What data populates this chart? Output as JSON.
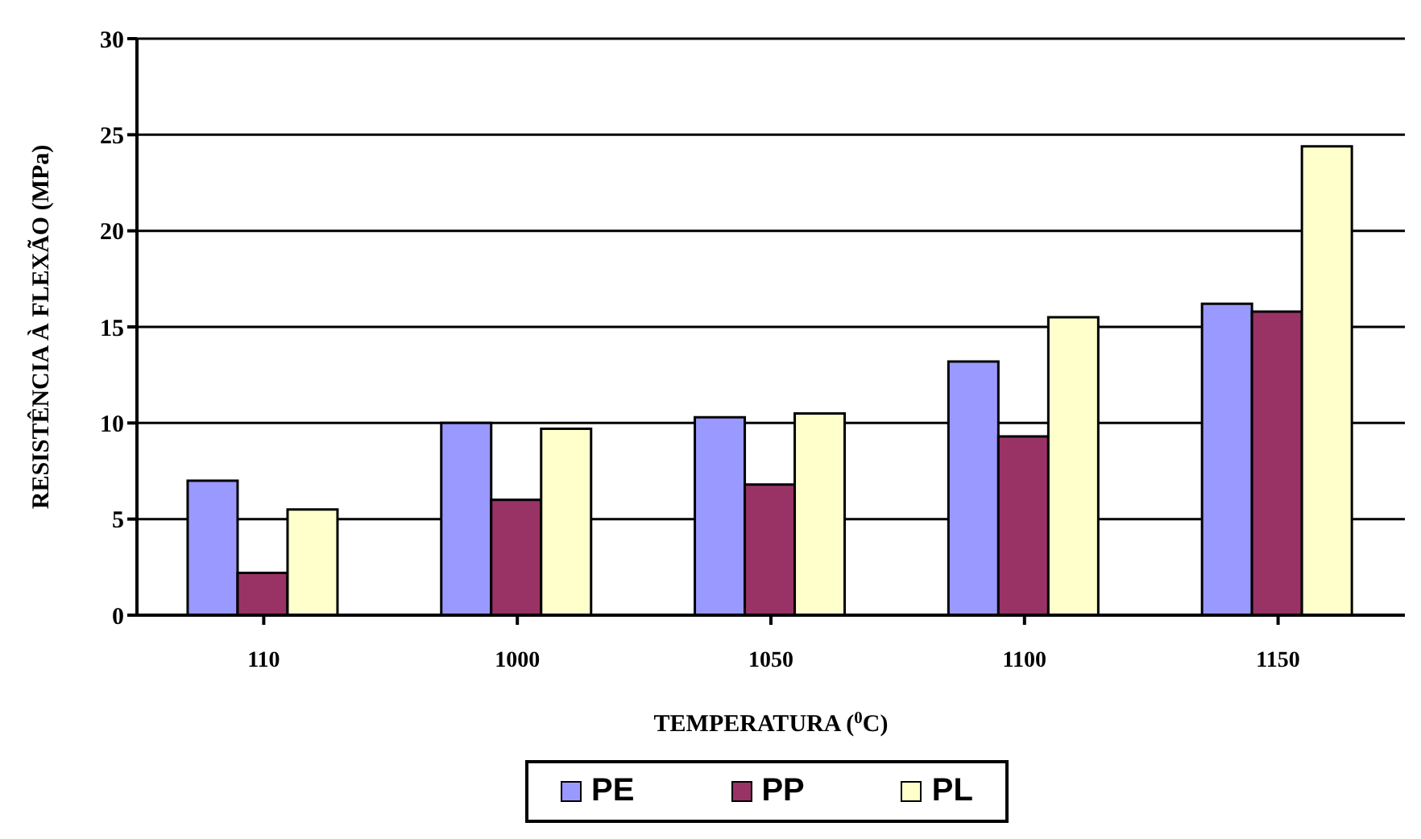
{
  "chart_data": {
    "type": "bar",
    "xlabel": "TEMPERATURA ($^{0}$C)",
    "ylabel": "RESISTÊNCIA À FLEXÃO (MPa)",
    "categories": [
      "110",
      "1000",
      "1050",
      "1100",
      "1150"
    ],
    "series": [
      {
        "name": "PE",
        "color": "#9999ff",
        "values": [
          7.0,
          10.0,
          10.3,
          13.2,
          16.2
        ]
      },
      {
        "name": "PP",
        "color": "#993366",
        "values": [
          2.2,
          6.0,
          6.8,
          9.3,
          15.8
        ]
      },
      {
        "name": "PL",
        "color": "#ffffcc",
        "values": [
          5.5,
          9.7,
          10.5,
          15.5,
          24.4
        ]
      }
    ],
    "ylim": [
      0,
      30
    ],
    "yticks": [
      0,
      5,
      10,
      15,
      20,
      25,
      30
    ],
    "grid": "y",
    "legend": "bottom"
  }
}
